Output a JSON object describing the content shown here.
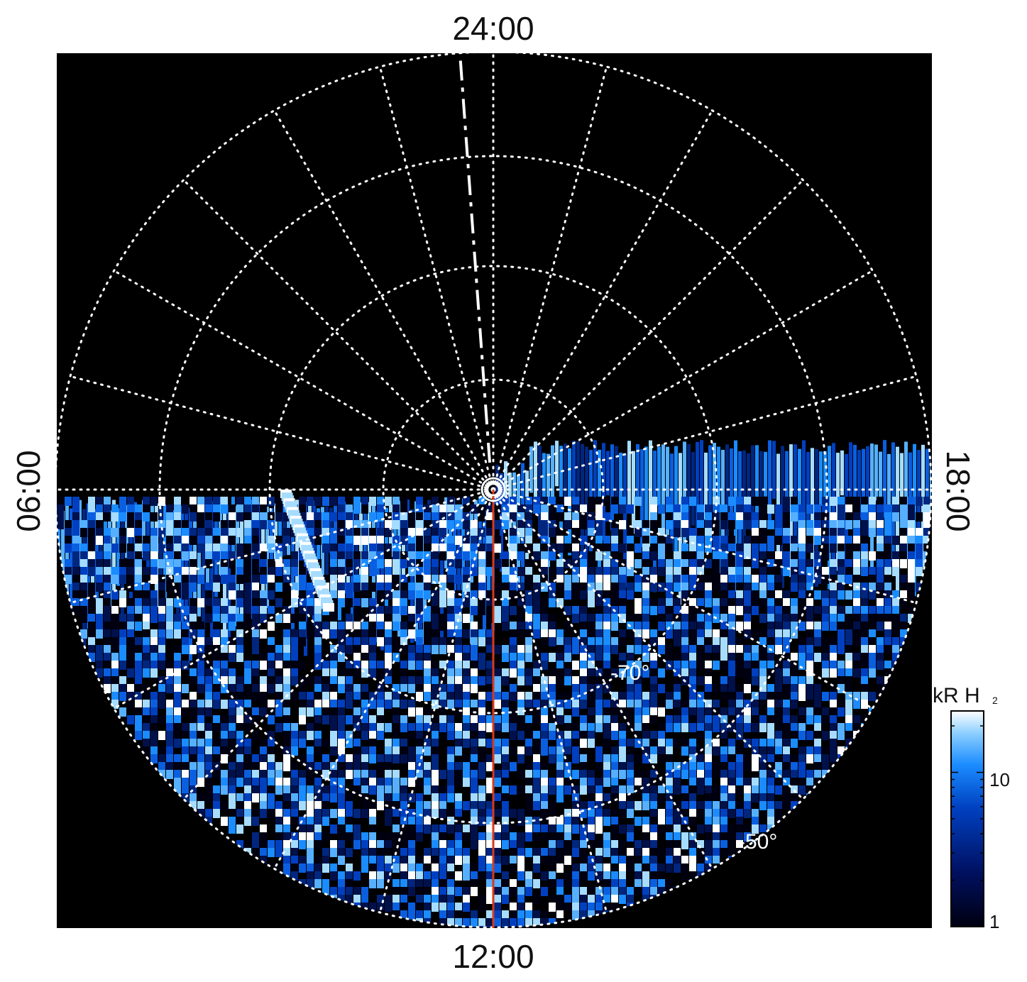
{
  "local_time_labels": {
    "top": "24:00",
    "bottom": "12:00",
    "left": "06:00",
    "right": "18:00"
  },
  "latitude_labels": [
    "-70°",
    "-50°"
  ],
  "colorbar": {
    "unit": "kR H",
    "unit_subscript": "2",
    "ticks": [
      "10",
      "1"
    ],
    "scale": "log",
    "colors": [
      "#000010",
      "#001060",
      "#0040c0",
      "#1a8cff",
      "#8fd0ff",
      "#ffffff"
    ]
  },
  "colors": {
    "background": "#000000",
    "grid": "#ffffff",
    "meridian_line": "#d83a1a",
    "emission": "#1a8cff"
  }
}
